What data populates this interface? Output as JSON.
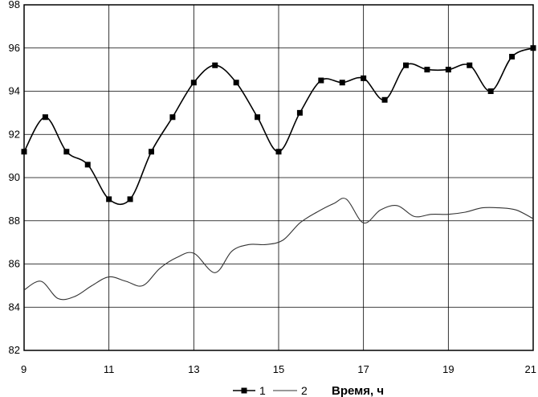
{
  "chart_data": {
    "type": "line",
    "xlabel": "Время, ч",
    "ylabel": "",
    "xlim": [
      9,
      21
    ],
    "ylim": [
      82,
      98
    ],
    "x_ticks": [
      9,
      11,
      13,
      15,
      17,
      19,
      21
    ],
    "y_ticks": [
      82,
      84,
      86,
      88,
      90,
      92,
      94,
      96,
      98
    ],
    "grid": true,
    "legend_position": "bottom",
    "series": [
      {
        "name": "1",
        "color": "#000000",
        "marker": "square",
        "x": [
          9,
          9.5,
          10,
          10.5,
          11,
          11.5,
          12,
          12.5,
          13,
          13.5,
          14,
          14.5,
          15,
          15.5,
          16,
          16.5,
          17,
          17.5,
          18,
          18.5,
          19,
          19.5,
          20,
          20.5,
          21
        ],
        "values": [
          91.2,
          92.8,
          91.2,
          90.6,
          89.0,
          89.0,
          91.2,
          92.8,
          94.4,
          95.2,
          94.4,
          92.8,
          91.2,
          93.0,
          94.5,
          94.4,
          94.6,
          93.6,
          95.2,
          95.0,
          95.0,
          95.2,
          94.0,
          95.6,
          96.0
        ]
      },
      {
        "name": "2",
        "color": "#333333",
        "marker": "none",
        "x": [
          9,
          9.4,
          9.8,
          10.2,
          10.6,
          11,
          11.4,
          11.8,
          12.2,
          12.6,
          13,
          13.5,
          13.9,
          14.3,
          14.7,
          15.1,
          15.5,
          15.9,
          16.3,
          16.6,
          17,
          17.4,
          17.8,
          18.2,
          18.6,
          19,
          19.4,
          19.8,
          20.2,
          20.6,
          21
        ],
        "values": [
          84.8,
          85.2,
          84.4,
          84.5,
          85.0,
          85.4,
          85.2,
          85.0,
          85.8,
          86.3,
          86.5,
          85.6,
          86.6,
          86.9,
          86.9,
          87.1,
          87.9,
          88.4,
          88.8,
          89.0,
          87.9,
          88.5,
          88.7,
          88.2,
          88.3,
          88.3,
          88.4,
          88.6,
          88.6,
          88.5,
          88.1
        ]
      }
    ]
  }
}
